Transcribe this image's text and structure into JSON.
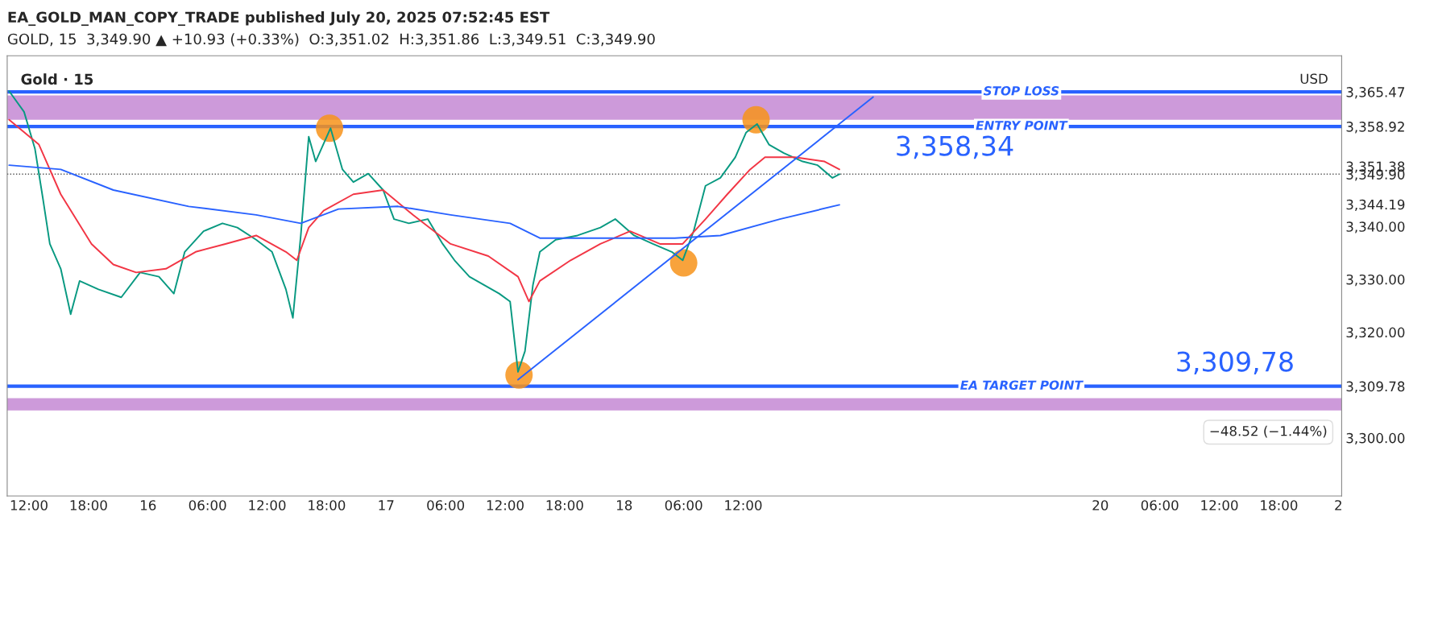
{
  "chart_data": {
    "type": "line",
    "title": "EA_GOLD_MAN_COPY_TRADE published July 20, 2025 07:52:45 EST",
    "subtitle": "GOLD, 15  3,349.90 ▲ +10.93 (+0.33%)  O:3,351.02  H:3,351.86  L:3,349.51  C:3,349.90",
    "xlim": [
      "2025-07-15T09:48",
      "2025-07-21T00:20"
    ],
    "ylim": [
      3289,
      3372.3
    ],
    "xticks": [
      {
        "value": "2025-07-15T12:00",
        "label": "12:00"
      },
      {
        "value": "2025-07-15T18:00",
        "label": "18:00"
      },
      {
        "value": "2025-07-16",
        "label": "16"
      },
      {
        "value": "2025-07-16T06:00",
        "label": "06:00"
      },
      {
        "value": "2025-07-16T12:00",
        "label": "12:00"
      },
      {
        "value": "2025-07-16T18:00",
        "label": "18:00"
      },
      {
        "value": "2025-07-17",
        "label": "17"
      },
      {
        "value": "2025-07-17T06:00",
        "label": "06:00"
      },
      {
        "value": "2025-07-17T12:00",
        "label": "12:00"
      },
      {
        "value": "2025-07-17T18:00",
        "label": "18:00"
      },
      {
        "value": "2025-07-18",
        "label": "18"
      },
      {
        "value": "2025-07-18T06:00",
        "label": "06:00"
      },
      {
        "value": "2025-07-18T12:00",
        "label": "12:00"
      },
      {
        "value": "2025-07-20",
        "label": "20"
      },
      {
        "value": "2025-07-20T06:00",
        "label": "06:00"
      },
      {
        "value": "2025-07-20T12:00",
        "label": "12:00"
      },
      {
        "value": "2025-07-20T18:00",
        "label": "18:00"
      },
      {
        "value": "2025-07-21",
        "label": "2"
      }
    ],
    "yticks": [
      {
        "value": 3300,
        "label": "3,300.00"
      },
      {
        "value": 3309.78,
        "label": "3,309.78"
      },
      {
        "value": 3320,
        "label": "3,320.00"
      },
      {
        "value": 3330,
        "label": "3,330.00"
      },
      {
        "value": 3340,
        "label": "3,340.00"
      },
      {
        "value": 3344.19,
        "label": "3,344.19"
      },
      {
        "value": 3349.9,
        "label": "3,349.90"
      },
      {
        "value": 3351.38,
        "label": "3,351.38"
      },
      {
        "value": 3358.92,
        "label": "3,358.92"
      },
      {
        "value": 3365.47,
        "label": "3,365.47"
      }
    ],
    "grid": false,
    "legend": false,
    "series": [
      {
        "color": "#089981",
        "x": [
          "2025-07-15T10:00",
          "2025-07-15T11:30",
          "2025-07-15T12:36",
          "2025-07-15T13:24",
          "2025-07-15T14:06",
          "2025-07-15T15:12",
          "2025-07-15T16:12",
          "2025-07-15T17:06",
          "2025-07-15T19:00",
          "2025-07-15T21:18",
          "2025-07-15T23:12",
          "2025-07-16T01:06",
          "2025-07-16T02:36",
          "2025-07-16T03:42",
          "2025-07-16T05:36",
          "2025-07-16T07:30",
          "2025-07-16T09:00",
          "2025-07-16T10:54",
          "2025-07-16T12:30",
          "2025-07-16T13:54",
          "2025-07-16T14:36",
          "2025-07-16T15:24",
          "2025-07-16T16:12",
          "2025-07-16T16:54",
          "2025-07-16T18:24",
          "2025-07-16T19:36",
          "2025-07-16T20:42",
          "2025-07-16T22:12",
          "2025-07-16T23:42",
          "2025-07-17T00:48",
          "2025-07-17T02:18",
          "2025-07-17T04:12",
          "2025-07-17T05:42",
          "2025-07-17T06:54",
          "2025-07-17T08:24",
          "2025-07-17T09:54",
          "2025-07-17T11:24",
          "2025-07-17T12:30",
          "2025-07-17T13:18",
          "2025-07-17T14:00",
          "2025-07-17T14:48",
          "2025-07-17T15:30",
          "2025-07-17T17:06",
          "2025-07-17T19:18",
          "2025-07-17T21:36",
          "2025-07-17T23:06",
          "2025-07-18T01:00",
          "2025-07-18T02:54",
          "2025-07-18T04:48",
          "2025-07-18T05:54",
          "2025-07-18T07:00",
          "2025-07-18T08:12",
          "2025-07-18T09:42",
          "2025-07-18T11:12",
          "2025-07-18T12:18",
          "2025-07-18T13:24",
          "2025-07-18T14:36",
          "2025-07-18T16:06",
          "2025-07-18T18:00",
          "2025-07-18T19:30",
          "2025-07-18T21:00",
          "2025-07-18T21:42"
        ],
        "values": [
          3365.6,
          3361.7,
          3354.7,
          3345.3,
          3336.7,
          3332,
          3323.4,
          3329.7,
          3328.1,
          3326.6,
          3331.3,
          3330.5,
          3327.3,
          3335.2,
          3339.1,
          3340.6,
          3339.8,
          3337.5,
          3335.2,
          3328.1,
          3322.7,
          3338.3,
          3357.0,
          3352.3,
          3358.6,
          3350.8,
          3348.4,
          3350,
          3346.9,
          3341.4,
          3340.6,
          3341.4,
          3336.7,
          3333.6,
          3330.5,
          3328.9,
          3327.3,
          3325.8,
          3312.5,
          3316.4,
          3328.9,
          3335.2,
          3337.5,
          3338.3,
          3339.8,
          3341.4,
          3338.3,
          3336.7,
          3335.2,
          3333.6,
          3339.1,
          3347.7,
          3349.2,
          3353.1,
          3357.8,
          3359.4,
          3355.5,
          3353.9,
          3352.3,
          3351.6,
          3349.2,
          3349.9
        ]
      },
      {
        "color": "#f23645",
        "x": [
          "2025-07-15T10:00",
          "2025-07-15T13:00",
          "2025-07-15T15:12",
          "2025-07-15T18:18",
          "2025-07-15T20:30",
          "2025-07-15T22:48",
          "2025-07-16T01:48",
          "2025-07-16T04:48",
          "2025-07-16T07:48",
          "2025-07-16T10:54",
          "2025-07-16T13:54",
          "2025-07-16T15:00",
          "2025-07-16T16:12",
          "2025-07-16T17:42",
          "2025-07-16T20:42",
          "2025-07-16T23:42",
          "2025-07-17T02:42",
          "2025-07-17T06:30",
          "2025-07-17T10:18",
          "2025-07-17T13:18",
          "2025-07-17T14:24",
          "2025-07-17T15:30",
          "2025-07-17T18:36",
          "2025-07-17T21:36",
          "2025-07-18T00:36",
          "2025-07-18T03:36",
          "2025-07-18T05:54",
          "2025-07-18T08:12",
          "2025-07-18T10:24",
          "2025-07-18T12:42",
          "2025-07-18T14:12",
          "2025-07-18T17:12",
          "2025-07-18T20:12",
          "2025-07-18T21:42"
        ],
        "values": [
          3360.2,
          3355.5,
          3346.1,
          3336.7,
          3332.8,
          3331.3,
          3332,
          3335.2,
          3336.7,
          3338.3,
          3335.2,
          3333.6,
          3339.8,
          3343,
          3346.1,
          3346.9,
          3342.2,
          3336.7,
          3334.4,
          3330.5,
          3325.8,
          3329.7,
          3333.6,
          3336.7,
          3339.1,
          3336.7,
          3336.7,
          3341.4,
          3346.1,
          3350.8,
          3353.1,
          3353.1,
          3352.3,
          3350.8
        ]
      },
      {
        "color": "#2962ff",
        "x": [
          "2025-07-15T10:00",
          "2025-07-15T15:12",
          "2025-07-15T20:30",
          "2025-07-16T04:06",
          "2025-07-16T10:54",
          "2025-07-16T15:24",
          "2025-07-16T19:12",
          "2025-07-17T01:12",
          "2025-07-17T06:30",
          "2025-07-17T12:30",
          "2025-07-17T15:30",
          "2025-07-17T21:36",
          "2025-07-18T05:06",
          "2025-07-18T09:42",
          "2025-07-18T15:42",
          "2025-07-18T21:42"
        ],
        "values": [
          3351.6,
          3350.8,
          3346.9,
          3343.8,
          3342.2,
          3340.6,
          3343.3,
          3343.8,
          3342.2,
          3340.6,
          3337.8,
          3337.8,
          3337.8,
          3338.3,
          3341.4,
          3344.1
        ]
      },
      {
        "color": "#2962ff",
        "x": [
          "2025-07-17T13:18",
          "2025-07-19T01:06"
        ],
        "values": [
          3311.0,
          3364.5
        ]
      },
      {
        "type": "scatter",
        "color": "#f7931a",
        "marker": "circle",
        "x": [
          "2025-07-16T18:18",
          "2025-07-18T13:18",
          "2025-07-18T06:00",
          "2025-07-17T13:24"
        ],
        "values": [
          3358.6,
          3360.2,
          3333.1,
          3311.9
        ]
      }
    ],
    "ref_lines": [
      {
        "axis": "y",
        "value": 3365.47,
        "label": "STOP LOSS",
        "color": "#2962ff"
      },
      {
        "axis": "y",
        "value": 3358.92,
        "label": "ENTRY POINT",
        "color": "#2962ff"
      },
      {
        "axis": "y",
        "value": 3309.78,
        "label": "EA TARGET POINT",
        "color": "#2962ff"
      },
      {
        "axis": "y",
        "value": 3349.9,
        "color": "#555555",
        "line_style": "dotted"
      }
    ],
    "bands": [
      {
        "axis": "y",
        "from": 3360.2,
        "to": 3364.8,
        "color": "#c88fd6"
      },
      {
        "axis": "y",
        "from": 3305.2,
        "to": 3307.5,
        "color": "#c88fd6"
      }
    ],
    "annotations": [
      "Gold · 15",
      "USD",
      "3,358,34",
      "3,309,78",
      "−48.52 (−1.44%)"
    ]
  }
}
